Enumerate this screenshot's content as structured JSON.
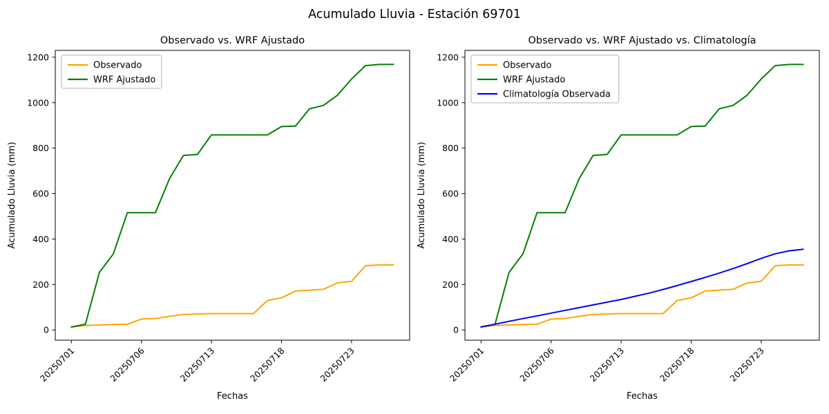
{
  "figure": {
    "title": "Acumulado Lluvia - Estación 69701",
    "background": "#ffffff"
  },
  "colors": {
    "observado": "#FFA500",
    "wrf_ajustado": "#008000",
    "climatologia": "#0000FF",
    "axis": "#000000",
    "legend_border": "#b3b3b3"
  },
  "chart_data": [
    {
      "type": "line",
      "title": "Observado vs. WRF Ajustado",
      "xlabel": "Fechas",
      "ylabel": "Acumulado Lluvia (mm)",
      "ylim": [
        -45,
        1230
      ],
      "yticks": [
        0,
        200,
        400,
        600,
        800,
        1000,
        1200
      ],
      "grid": false,
      "legend_position": "upper left",
      "x": [
        "20250701",
        "20250702",
        "20250703",
        "20250704",
        "20250705",
        "20250706",
        "20250707",
        "20250708",
        "20250710",
        "20250712",
        "20250713",
        "20250714",
        "20250715",
        "20250716",
        "20250717",
        "20250718",
        "20250719",
        "20250720",
        "20250721",
        "20250722",
        "20250723",
        "20250724",
        "20250725",
        "20250726"
      ],
      "xtick_positions": [
        0,
        5,
        10,
        15,
        20
      ],
      "xtick_labels": [
        "20250701",
        "20250706",
        "20250713",
        "20250718",
        "20250723"
      ],
      "series": [
        {
          "name": "Observado",
          "color": "#FFA500",
          "values": [
            13,
            19,
            22,
            24,
            25,
            48,
            50,
            60,
            68,
            70,
            72,
            72,
            72,
            72,
            130,
            141,
            171,
            175,
            179,
            207,
            214,
            283,
            286,
            286
          ]
        },
        {
          "name": "WRF Ajustado",
          "color": "#008000",
          "values": [
            13,
            25,
            253,
            335,
            516,
            516,
            516,
            665,
            768,
            772,
            858,
            858,
            858,
            858,
            858,
            895,
            897,
            973,
            988,
            1033,
            1104,
            1163,
            1168,
            1168
          ]
        }
      ]
    },
    {
      "type": "line",
      "title": "Observado vs. WRF Ajustado vs. Climatología",
      "xlabel": "Fechas",
      "ylabel": "Acumulado Lluvia (mm)",
      "ylim": [
        -45,
        1230
      ],
      "yticks": [
        0,
        200,
        400,
        600,
        800,
        1000,
        1200
      ],
      "grid": false,
      "legend_position": "upper left",
      "x": [
        "20250701",
        "20250702",
        "20250703",
        "20250704",
        "20250705",
        "20250706",
        "20250707",
        "20250708",
        "20250710",
        "20250712",
        "20250713",
        "20250714",
        "20250715",
        "20250716",
        "20250717",
        "20250718",
        "20250719",
        "20250720",
        "20250721",
        "20250722",
        "20250723",
        "20250724",
        "20250725",
        "20250726"
      ],
      "xtick_positions": [
        0,
        5,
        10,
        15,
        20
      ],
      "xtick_labels": [
        "20250701",
        "20250706",
        "20250713",
        "20250718",
        "20250723"
      ],
      "series": [
        {
          "name": "Observado",
          "color": "#FFA500",
          "values": [
            13,
            19,
            22,
            24,
            25,
            48,
            50,
            60,
            68,
            70,
            72,
            72,
            72,
            72,
            130,
            141,
            171,
            175,
            179,
            207,
            214,
            283,
            286,
            286
          ]
        },
        {
          "name": "WRF Ajustado",
          "color": "#008000",
          "values": [
            13,
            25,
            253,
            335,
            516,
            516,
            516,
            665,
            768,
            772,
            858,
            858,
            858,
            858,
            858,
            895,
            897,
            973,
            988,
            1033,
            1104,
            1163,
            1168,
            1168
          ]
        },
        {
          "name": "Climatología Observada",
          "color": "#0000FF",
          "values": [
            13,
            25,
            38,
            50,
            62,
            74,
            86,
            98,
            110,
            122,
            134,
            148,
            162,
            178,
            195,
            213,
            231,
            250,
            270,
            292,
            315,
            335,
            348,
            355
          ]
        }
      ]
    }
  ]
}
